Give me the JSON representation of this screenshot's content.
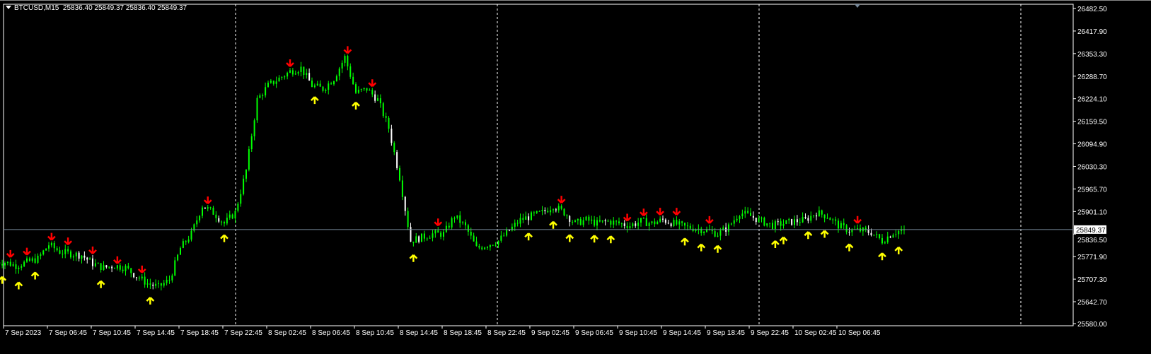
{
  "header": {
    "symbol": "BTCUSD,M15",
    "ohlc": "25836.40 25849.37 25836.40 25849.37"
  },
  "chart_data": {
    "type": "candlestick",
    "symbol": "BTCUSD",
    "timeframe": "M15",
    "ylim": [
      25580.0,
      26482.5
    ],
    "y_ticks": [
      "26482.50",
      "26417.90",
      "26353.30",
      "26288.70",
      "26224.10",
      "26159.50",
      "26094.90",
      "26030.30",
      "25965.70",
      "25901.10",
      "25836.50",
      "25771.90",
      "25707.30",
      "25642.70",
      "25580.00"
    ],
    "x_ticks": [
      "7 Sep 2023",
      "7 Sep 06:45",
      "7 Sep 10:45",
      "7 Sep 14:45",
      "7 Sep 18:45",
      "7 Sep 22:45",
      "8 Sep 02:45",
      "8 Sep 06:45",
      "8 Sep 10:45",
      "8 Sep 14:45",
      "8 Sep 18:45",
      "8 Sep 22:45",
      "9 Sep 02:45",
      "9 Sep 06:45",
      "9 Sep 10:45",
      "9 Sep 14:45",
      "9 Sep 18:45",
      "9 Sep 22:45",
      "10 Sep 02:45",
      "10 Sep 06:45"
    ],
    "current_price": "25849.37",
    "hourly_closes": [
      25756,
      25746,
      25756,
      25766,
      25806,
      25786,
      25780,
      25776,
      25752,
      25740,
      25746,
      25740,
      25716,
      25695,
      25685,
      25705,
      25796,
      25837,
      25918,
      25898,
      25867,
      25898,
      26019,
      26221,
      26262,
      26282,
      26302,
      26312,
      26262,
      26252,
      26282,
      26343,
      26241,
      26252,
      26221,
      26140,
      25999,
      25817,
      25827,
      25837,
      25837,
      25888,
      25857,
      25796,
      25806,
      25817,
      25847,
      25877,
      25888,
      25898,
      25918,
      25898,
      25867,
      25877,
      25867,
      25873,
      25867,
      25861,
      25873,
      25867,
      25877,
      25867,
      25857,
      25853,
      25847,
      25837,
      25857,
      25898,
      25888,
      25873,
      25861,
      25867,
      25873,
      25877,
      25898,
      25888,
      25861,
      25847,
      25847,
      25841,
      25817,
      25841,
      25849.37
    ],
    "colors": {
      "bull": "#00ff00",
      "bear": "#ffffff",
      "up_arrow": "#ffff00",
      "down_arrow": "#ff0000",
      "grid": "#ffffff",
      "price_line": "#778899"
    }
  }
}
